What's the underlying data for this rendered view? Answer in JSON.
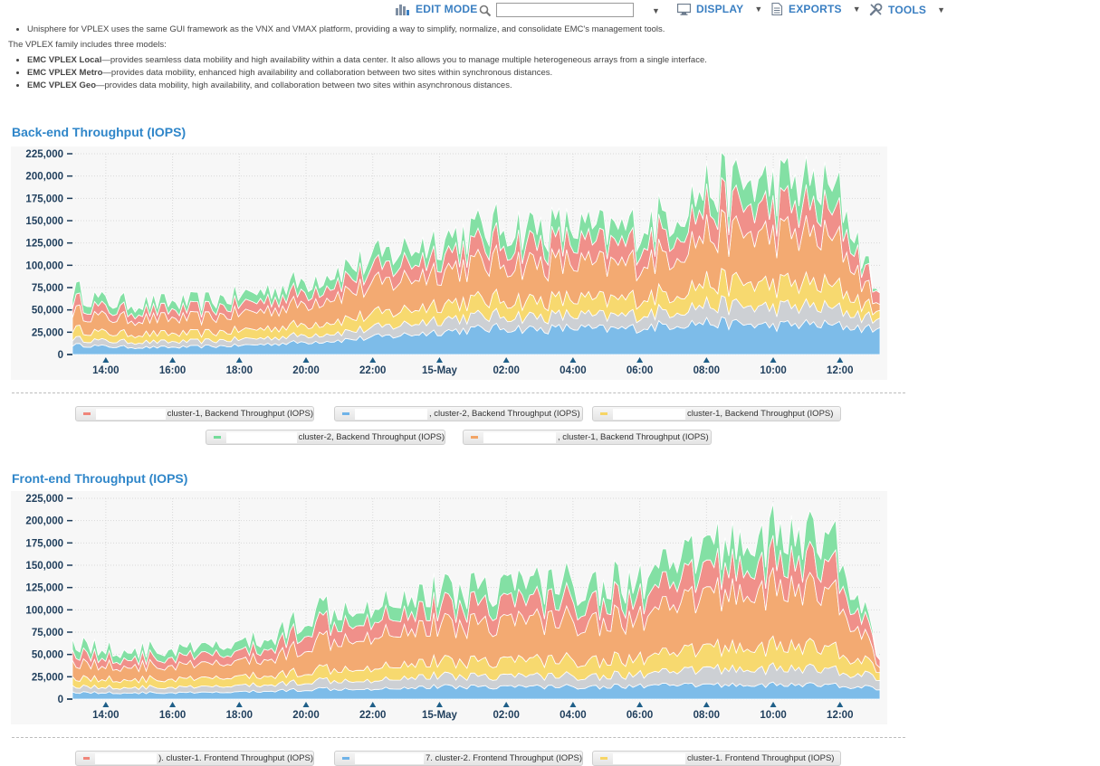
{
  "toolbar": {
    "edit_mode_label": "EDIT MODE",
    "search_placeholder": "",
    "display_label": "DISPLAY",
    "exports_label": "EXPORTS",
    "tools_label": "TOOLS",
    "accent_color": "#3a7fc2"
  },
  "intro": {
    "bullet_top": "Unisphere for VPLEX uses the same GUI framework as the VNX and VMAX platform, providing a way to simplify, normalize, and consolidate EMC's management tools.",
    "family_sentence": "The VPLEX family includes three models:",
    "models": [
      {
        "name": "EMC VPLEX Local",
        "desc": "—provides seamless data mobility and high availability within a data center. It also allows you to manage multiple heterogeneous arrays from a single interface."
      },
      {
        "name": "EMC VPLEX Metro",
        "desc": "—provides data mobility, enhanced high availability and collaboration between two sites within synchronous distances."
      },
      {
        "name": "EMC VPLEX Geo",
        "desc": "—provides data mobility, high availability, and collaboration between two sites within asynchronous distances."
      }
    ]
  },
  "chart_data": [
    {
      "type": "area",
      "title": "Back-end Throughput (IOPS)",
      "stacked": true,
      "ylim": [
        0,
        225000
      ],
      "y_ticks": [
        "0",
        "25,000",
        "50,000",
        "75,000",
        "100,000",
        "125,000",
        "150,000",
        "175,000",
        "200,000",
        "225,000"
      ],
      "x_ticks": [
        "14:00",
        "16:00",
        "18:00",
        "20:00",
        "22:00",
        "15-May",
        "02:00",
        "04:00",
        "06:00",
        "08:00",
        "10:00",
        "12:00"
      ],
      "x_hours": [
        13.0,
        14,
        15,
        16,
        17,
        18,
        19,
        20,
        21,
        22,
        23,
        24,
        25,
        26,
        27,
        28,
        29,
        30,
        31,
        32,
        33,
        34,
        35,
        36,
        37.2
      ],
      "legend": [
        {
          "prefix": "",
          "suffix": " cluster-1, Backend Throughput (IOPS)",
          "color": "#f0857a"
        },
        {
          "prefix": "",
          "suffix": ", cluster-2, Backend Throughput (IOPS)",
          "color": "#6fb3e8"
        },
        {
          "prefix": "",
          "suffix": " cluster-1, Backend Throughput (IOPS)",
          "color": "#f7d565"
        },
        {
          "prefix": "",
          "suffix": " cluster-2, Backend Throughput (IOPS)",
          "color": "#74dc9a"
        },
        {
          "prefix": "",
          "suffix": ", cluster-1, Backend Throughput (IOPS)",
          "color": "#f2a465"
        }
      ],
      "series": [
        {
          "color": "#7dbce9",
          "values": [
            11000,
            9000,
            8000,
            8000,
            9000,
            10000,
            12000,
            14000,
            16000,
            19000,
            22000,
            26000,
            28000,
            30000,
            28000,
            30000,
            28000,
            30000,
            34000,
            36000,
            34000,
            32000,
            34000,
            32000,
            28000
          ]
        },
        {
          "color": "#cdd0d4",
          "values": [
            7000,
            6000,
            6000,
            6000,
            6000,
            7000,
            7000,
            8000,
            9000,
            10000,
            12000,
            14000,
            14000,
            14000,
            14000,
            14000,
            14000,
            15000,
            16000,
            20000,
            20000,
            20000,
            20000,
            18000,
            10000
          ]
        },
        {
          "color": "#f7d96f",
          "values": [
            11000,
            9000,
            9000,
            9000,
            9000,
            10000,
            11000,
            12000,
            14000,
            15000,
            16000,
            18000,
            18000,
            18000,
            18000,
            18000,
            18000,
            19000,
            20000,
            25000,
            26000,
            26000,
            26000,
            24000,
            8000
          ]
        },
        {
          "color": "#f3aa72",
          "values": [
            20000,
            17000,
            17000,
            17000,
            17000,
            19000,
            21000,
            24000,
            30000,
            32000,
            35000,
            38000,
            40000,
            42000,
            42000,
            40000,
            38000,
            40000,
            45000,
            55000,
            55000,
            55000,
            55000,
            50000,
            6000
          ]
        },
        {
          "color": "#f0908a",
          "values": [
            12000,
            9000,
            9000,
            9000,
            10000,
            10000,
            12000,
            13000,
            15000,
            16000,
            18000,
            18000,
            20000,
            22000,
            22000,
            22000,
            22000,
            22000,
            25000,
            30000,
            30000,
            30000,
            30000,
            28000,
            12000
          ]
        },
        {
          "color": "#83e0a4",
          "values": [
            12000,
            9000,
            9000,
            9000,
            9000,
            10000,
            11000,
            12000,
            13000,
            14000,
            16000,
            17000,
            18000,
            19000,
            19000,
            18000,
            18000,
            19000,
            20000,
            22000,
            26000,
            28000,
            28000,
            26000,
            0
          ]
        }
      ]
    },
    {
      "type": "area",
      "title": "Front-end Throughput (IOPS)",
      "stacked": true,
      "ylim": [
        0,
        225000
      ],
      "y_ticks": [
        "0",
        "25,000",
        "50,000",
        "75,000",
        "100,000",
        "125,000",
        "150,000",
        "175,000",
        "200,000",
        "225,000"
      ],
      "x_ticks": [
        "14:00",
        "16:00",
        "18:00",
        "20:00",
        "22:00",
        "15-May",
        "02:00",
        "04:00",
        "06:00",
        "08:00",
        "10:00",
        "12:00"
      ],
      "x_hours": [
        13.0,
        14,
        15,
        16,
        17,
        18,
        19,
        20,
        21,
        22,
        23,
        24,
        25,
        26,
        27,
        28,
        29,
        30,
        31,
        32,
        33,
        34,
        35,
        36,
        37.2
      ],
      "legend": [
        {
          "prefix": "",
          "suffix": "). cluster-1. Frontend Throughput (IOPS)",
          "color": "#f0857a"
        },
        {
          "prefix": "",
          "suffix": "7. cluster-2. Frontend Throughput (IOPS)",
          "color": "#6fb3e8"
        },
        {
          "prefix": "",
          "suffix": " cluster-1. Frontend Throughput (IOPS)",
          "color": "#f7d565"
        }
      ],
      "series": [
        {
          "color": "#7dbce9",
          "values": [
            8000,
            7000,
            7000,
            7000,
            7000,
            8000,
            9000,
            11000,
            12000,
            12000,
            13000,
            14000,
            14000,
            14000,
            14000,
            14000,
            14000,
            15000,
            15000,
            16000,
            16000,
            16000,
            16000,
            15000,
            12000
          ]
        },
        {
          "color": "#cdd0d4",
          "values": [
            7000,
            6000,
            6000,
            6000,
            6000,
            7000,
            7000,
            9000,
            10000,
            10000,
            12000,
            12000,
            12000,
            12000,
            12000,
            12000,
            12000,
            13000,
            14000,
            18000,
            18000,
            18000,
            18000,
            16000,
            12000
          ]
        },
        {
          "color": "#f7d96f",
          "values": [
            10000,
            9000,
            9000,
            9000,
            9000,
            10000,
            10000,
            12000,
            14000,
            15000,
            16000,
            16000,
            17000,
            18000,
            18000,
            18000,
            18000,
            18000,
            20000,
            24000,
            25000,
            25000,
            25000,
            22000,
            10000
          ]
        },
        {
          "color": "#f3aa72",
          "values": [
            18000,
            15000,
            15000,
            15000,
            15000,
            17000,
            19000,
            30000,
            35000,
            38000,
            40000,
            40000,
            42000,
            44000,
            45000,
            44000,
            44000,
            45000,
            50000,
            60000,
            62000,
            64000,
            64000,
            58000,
            6000
          ]
        },
        {
          "color": "#f0908a",
          "values": [
            12000,
            9000,
            9000,
            9000,
            10000,
            10000,
            12000,
            20000,
            20000,
            20000,
            20000,
            20000,
            22000,
            22000,
            22000,
            22000,
            22000,
            22000,
            24000,
            28000,
            30000,
            30000,
            30000,
            28000,
            10000
          ]
        },
        {
          "color": "#83e0a4",
          "values": [
            12000,
            9000,
            9000,
            9000,
            9000,
            10000,
            11000,
            14000,
            16000,
            16000,
            18000,
            18000,
            19000,
            20000,
            20000,
            20000,
            20000,
            20000,
            22000,
            26000,
            28000,
            30000,
            30000,
            28000,
            0
          ]
        }
      ]
    }
  ]
}
